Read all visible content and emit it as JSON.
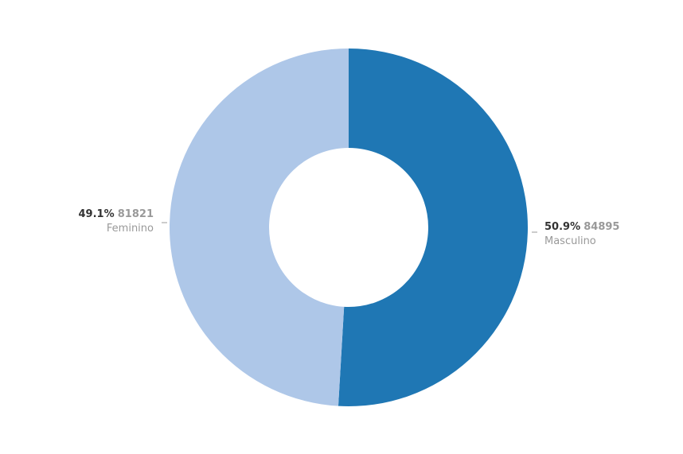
{
  "chart_data": {
    "type": "pie",
    "donut": true,
    "slices": [
      {
        "label": "Masculino",
        "value": 84895,
        "percent": "50.9%",
        "color": "#1f77b4"
      },
      {
        "label": "Feminino",
        "value": 81821,
        "percent": "49.1%",
        "color": "#aec7e8"
      }
    ]
  }
}
